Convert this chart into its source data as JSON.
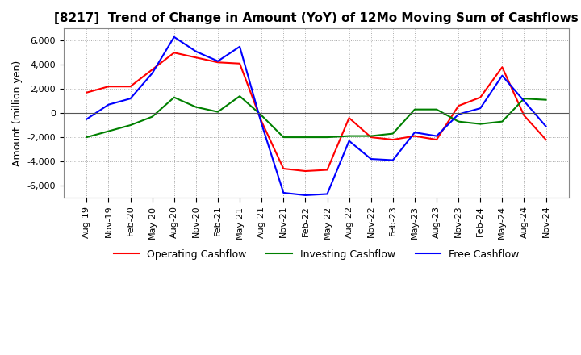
{
  "title": "[8217]  Trend of Change in Amount (YoY) of 12Mo Moving Sum of Cashflows",
  "ylabel": "Amount (million yen)",
  "ylim": [
    -7000,
    7000
  ],
  "yticks": [
    -6000,
    -4000,
    -2000,
    0,
    2000,
    4000,
    6000
  ],
  "x_labels": [
    "Aug-19",
    "Nov-19",
    "Feb-20",
    "May-20",
    "Aug-20",
    "Nov-20",
    "Feb-21",
    "May-21",
    "Aug-21",
    "Nov-21",
    "Feb-22",
    "May-22",
    "Aug-22",
    "Nov-22",
    "Feb-23",
    "May-23",
    "Aug-23",
    "Nov-23",
    "Feb-24",
    "May-24",
    "Aug-24",
    "Nov-24"
  ],
  "operating": [
    1700,
    2200,
    2200,
    3600,
    5000,
    4600,
    4200,
    4100,
    -700,
    -4600,
    -4800,
    -4700,
    -400,
    -2000,
    -2200,
    -1900,
    -2200,
    600,
    1300,
    3800,
    -200,
    -2200
  ],
  "investing": [
    -2000,
    -1500,
    -1000,
    -300,
    1300,
    500,
    100,
    1400,
    -200,
    -2000,
    -2000,
    -2000,
    -1900,
    -1900,
    -1700,
    300,
    300,
    -700,
    -900,
    -700,
    1200,
    1100
  ],
  "free": [
    -500,
    700,
    1200,
    3300,
    6300,
    5100,
    4300,
    5500,
    -900,
    -6600,
    -6800,
    -6700,
    -2300,
    -3800,
    -3900,
    -1600,
    -1900,
    -100,
    400,
    3100,
    1000,
    -1100
  ],
  "op_color": "#ff0000",
  "inv_color": "#008000",
  "free_color": "#0000ff",
  "bg_color": "#ffffff",
  "grid_color": "#aaaaaa",
  "title_fontsize": 11,
  "label_fontsize": 9,
  "tick_fontsize": 8
}
